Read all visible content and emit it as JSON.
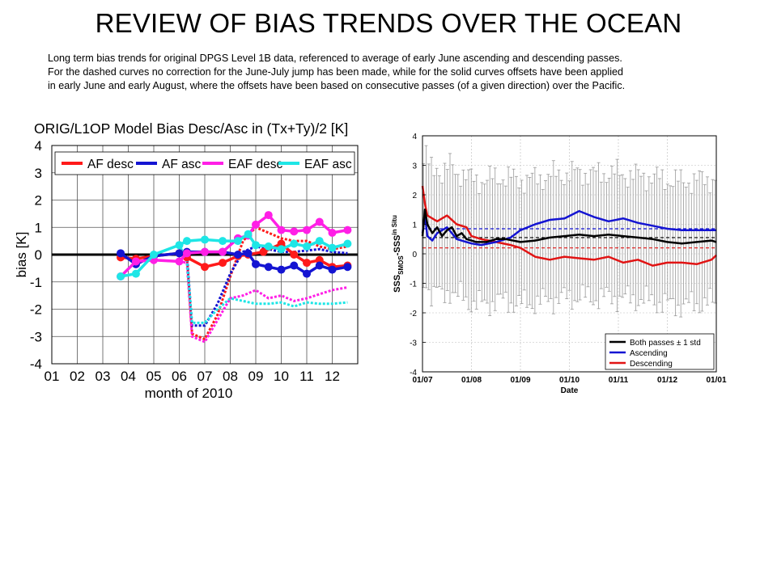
{
  "title": "REVIEW OF BIAS TRENDS OVER THE OCEAN",
  "caption_lines": [
    "Long term bias trends for original DPGS Level 1B data, referenced to average of early June ascending and descending passes.",
    "For the dashed curves no correction for the June-July jump has been made, while for the solid curves offsets have been applied",
    "in early June and early August, where the offsets have been based on consecutive passes (of a given direction) over the Pacific."
  ],
  "chart_data": [
    {
      "type": "line",
      "title": "ORIG/L1OP Model Bias Desc/Asc in (Tx+Ty)/2 [K]",
      "xlabel": "month of 2010",
      "ylabel": "bias [K]",
      "xlim": [
        1,
        13
      ],
      "ylim": [
        -4,
        4
      ],
      "x_tick_values": [
        1,
        2,
        3,
        4,
        5,
        6,
        7,
        8,
        9,
        10,
        11,
        12
      ],
      "x_tick_labels": [
        "01",
        "02",
        "03",
        "04",
        "05",
        "06",
        "07",
        "08",
        "09",
        "10",
        "11",
        "12"
      ],
      "y_ticks": [
        -4,
        -3,
        -2,
        -1,
        0,
        1,
        2,
        3,
        4
      ],
      "legend_position": "top",
      "grid": true,
      "series": [
        {
          "name": "AF desc",
          "color": "#ff1a1a",
          "style": "solid",
          "markers": true,
          "x": [
            3.7,
            4.3,
            5.0,
            6.0,
            6.3,
            7.0,
            7.7,
            8.3,
            8.7,
            9.3,
            10.0,
            10.5,
            11.0,
            11.5,
            12.0,
            12.6
          ],
          "y": [
            -0.1,
            -0.15,
            -0.05,
            0.05,
            -0.1,
            -0.45,
            -0.3,
            -0.05,
            0.0,
            0.1,
            0.4,
            0.0,
            -0.3,
            -0.2,
            -0.45,
            -0.4
          ]
        },
        {
          "name": "AF asc",
          "color": "#1414d2",
          "style": "solid",
          "markers": true,
          "x": [
            3.7,
            4.3,
            5.0,
            6.0,
            6.3,
            7.0,
            7.7,
            8.3,
            8.7,
            9.0,
            9.5,
            10.0,
            10.5,
            11.0,
            11.5,
            12.0,
            12.6
          ],
          "y": [
            0.05,
            -0.35,
            -0.05,
            0.05,
            0.1,
            0.1,
            0.1,
            0.0,
            0.05,
            -0.35,
            -0.45,
            -0.55,
            -0.4,
            -0.7,
            -0.4,
            -0.55,
            -0.45
          ]
        },
        {
          "name": "EAF desc",
          "color": "#ff1fe6",
          "style": "solid",
          "markers": true,
          "x": [
            3.7,
            4.3,
            5.0,
            6.0,
            6.3,
            7.0,
            7.7,
            8.3,
            8.7,
            9.0,
            9.5,
            10.0,
            10.5,
            11.0,
            11.5,
            12.0,
            12.6
          ],
          "y": [
            -0.8,
            -0.25,
            -0.2,
            -0.25,
            0.05,
            0.1,
            0.1,
            0.6,
            0.7,
            1.1,
            1.45,
            0.9,
            0.85,
            0.9,
            1.2,
            0.8,
            0.9
          ]
        },
        {
          "name": "EAF asc",
          "color": "#1ee6e6",
          "style": "solid",
          "markers": true,
          "x": [
            3.7,
            4.3,
            5.0,
            6.0,
            6.3,
            7.0,
            7.7,
            8.3,
            8.7,
            9.0,
            9.5,
            10.0,
            10.5,
            11.0,
            11.5,
            12.0,
            12.6
          ],
          "y": [
            -0.8,
            -0.7,
            0.0,
            0.35,
            0.5,
            0.55,
            0.5,
            0.5,
            0.75,
            0.35,
            0.3,
            0.2,
            0.4,
            0.3,
            0.5,
            0.25,
            0.4
          ]
        },
        {
          "name": "",
          "color": "#ff1a1a",
          "style": "dashed",
          "x": [
            3.7,
            4.3,
            5.0,
            6.0,
            6.3,
            6.5,
            7.0,
            7.5,
            8.0,
            8.5,
            9.0,
            9.5,
            10.0,
            10.5,
            11.0,
            11.5,
            12.0,
            12.6
          ],
          "y": [
            -0.1,
            -0.15,
            -0.05,
            0.05,
            0.0,
            -2.9,
            -3.1,
            -2.2,
            -0.8,
            0.5,
            1.0,
            0.8,
            0.6,
            0.5,
            0.5,
            0.3,
            0.2,
            0.3
          ]
        },
        {
          "name": "",
          "color": "#1414d2",
          "style": "dashed",
          "x": [
            3.7,
            4.3,
            5.0,
            6.0,
            6.3,
            6.5,
            7.0,
            7.5,
            8.0,
            8.5,
            9.0,
            9.5,
            10.0,
            10.5,
            11.0,
            11.5,
            12.0,
            12.6
          ],
          "y": [
            0.05,
            -0.35,
            -0.05,
            0.05,
            0.0,
            -2.6,
            -2.6,
            -1.8,
            -0.7,
            0.1,
            0.3,
            0.2,
            0.1,
            0.1,
            0.15,
            0.2,
            0.1,
            0.05
          ]
        },
        {
          "name": "",
          "color": "#ff1fe6",
          "style": "dashed",
          "x": [
            3.7,
            4.3,
            5.0,
            6.0,
            6.3,
            6.5,
            7.0,
            7.5,
            8.0,
            8.5,
            9.0,
            9.5,
            10.0,
            10.5,
            11.0,
            11.5,
            12.0,
            12.6
          ],
          "y": [
            -0.8,
            -0.25,
            -0.2,
            -0.25,
            -0.3,
            -3.0,
            -3.2,
            -2.4,
            -1.6,
            -1.5,
            -1.3,
            -1.6,
            -1.5,
            -1.7,
            -1.6,
            -1.45,
            -1.3,
            -1.2
          ]
        },
        {
          "name": "",
          "color": "#1ee6e6",
          "style": "dashed",
          "x": [
            3.7,
            4.3,
            5.0,
            6.0,
            6.3,
            6.5,
            7.0,
            7.5,
            8.0,
            8.5,
            9.0,
            9.5,
            10.0,
            10.5,
            11.0,
            11.5,
            12.0,
            12.6
          ],
          "y": [
            -0.8,
            -0.7,
            0.0,
            0.35,
            -0.2,
            -2.5,
            -2.5,
            -2.0,
            -1.6,
            -1.7,
            -1.8,
            -1.8,
            -1.75,
            -1.9,
            -1.75,
            -1.8,
            -1.8,
            -1.75
          ]
        }
      ],
      "reference_line": {
        "y": 0,
        "color": "#000000"
      }
    },
    {
      "type": "line",
      "title": "",
      "xlabel": "Date",
      "ylabel": "SSS_SMOS-SSS_in Situ",
      "ylabel_parts": {
        "base1": "SSS",
        "sub1": "SMOS",
        "mid": "-SSS",
        "sub2": "in Situ"
      },
      "x_tick_labels": [
        "01/07",
        "01/08",
        "01/09",
        "01/10",
        "01/11",
        "01/12",
        "01/01"
      ],
      "y_ticks": [
        -4,
        -3,
        -2,
        -1,
        0,
        1,
        2,
        3,
        4
      ],
      "ylim": [
        -4,
        4
      ],
      "grid": true,
      "legend_position": "bottom-right",
      "series": [
        {
          "name": "Both passes ± 1 std",
          "color": "#000000",
          "x": [
            0.0,
            0.05,
            0.1,
            0.2,
            0.3,
            0.4,
            0.5,
            0.6,
            0.7,
            0.8,
            0.9,
            1.0,
            1.1,
            1.3,
            1.5,
            1.7,
            2.0,
            2.3,
            2.6,
            2.9,
            3.2,
            3.5,
            3.8,
            4.1,
            4.4,
            4.7,
            5.0,
            5.3,
            5.6,
            5.9,
            6.0
          ],
          "y": [
            0.6,
            1.5,
            1.0,
            0.7,
            0.9,
            0.6,
            0.8,
            0.9,
            0.6,
            0.7,
            0.5,
            0.45,
            0.4,
            0.4,
            0.5,
            0.5,
            0.4,
            0.45,
            0.55,
            0.6,
            0.65,
            0.6,
            0.65,
            0.6,
            0.55,
            0.5,
            0.4,
            0.35,
            0.4,
            0.45,
            0.4
          ],
          "std_band": 1.0
        },
        {
          "name": "Ascending",
          "color": "#1414d2",
          "x": [
            0.0,
            0.05,
            0.1,
            0.2,
            0.3,
            0.5,
            0.7,
            0.9,
            1.0,
            1.2,
            1.5,
            1.8,
            2.0,
            2.3,
            2.6,
            2.9,
            3.2,
            3.5,
            3.8,
            4.1,
            4.4,
            4.7,
            5.0,
            5.3,
            5.6,
            5.9,
            6.0
          ],
          "y": [
            0.7,
            1.3,
            0.6,
            0.45,
            0.7,
            0.9,
            0.5,
            0.4,
            0.35,
            0.3,
            0.4,
            0.55,
            0.8,
            1.0,
            1.15,
            1.2,
            1.45,
            1.25,
            1.1,
            1.2,
            1.05,
            0.95,
            0.85,
            0.8,
            0.8,
            0.8,
            0.8
          ]
        },
        {
          "name": "Descending",
          "color": "#e11414",
          "x": [
            0.0,
            0.05,
            0.1,
            0.2,
            0.3,
            0.5,
            0.7,
            0.9,
            1.0,
            1.2,
            1.5,
            1.8,
            2.0,
            2.3,
            2.6,
            2.9,
            3.2,
            3.5,
            3.8,
            4.1,
            4.4,
            4.7,
            5.0,
            5.3,
            5.6,
            5.9,
            6.0
          ],
          "y": [
            2.3,
            1.7,
            1.3,
            1.2,
            1.1,
            1.3,
            1.0,
            0.9,
            0.6,
            0.5,
            0.4,
            0.3,
            0.2,
            -0.1,
            -0.2,
            -0.1,
            -0.15,
            -0.2,
            -0.1,
            -0.3,
            -0.2,
            -0.4,
            -0.3,
            -0.3,
            -0.35,
            -0.2,
            -0.05
          ]
        }
      ],
      "reference_lines": [
        {
          "y": 0.85,
          "color": "#1414d2",
          "style": "dashed"
        },
        {
          "y": 0.55,
          "color": "#000000",
          "style": "dashed"
        },
        {
          "y": 0.2,
          "color": "#e11414",
          "style": "dashed"
        }
      ]
    }
  ]
}
